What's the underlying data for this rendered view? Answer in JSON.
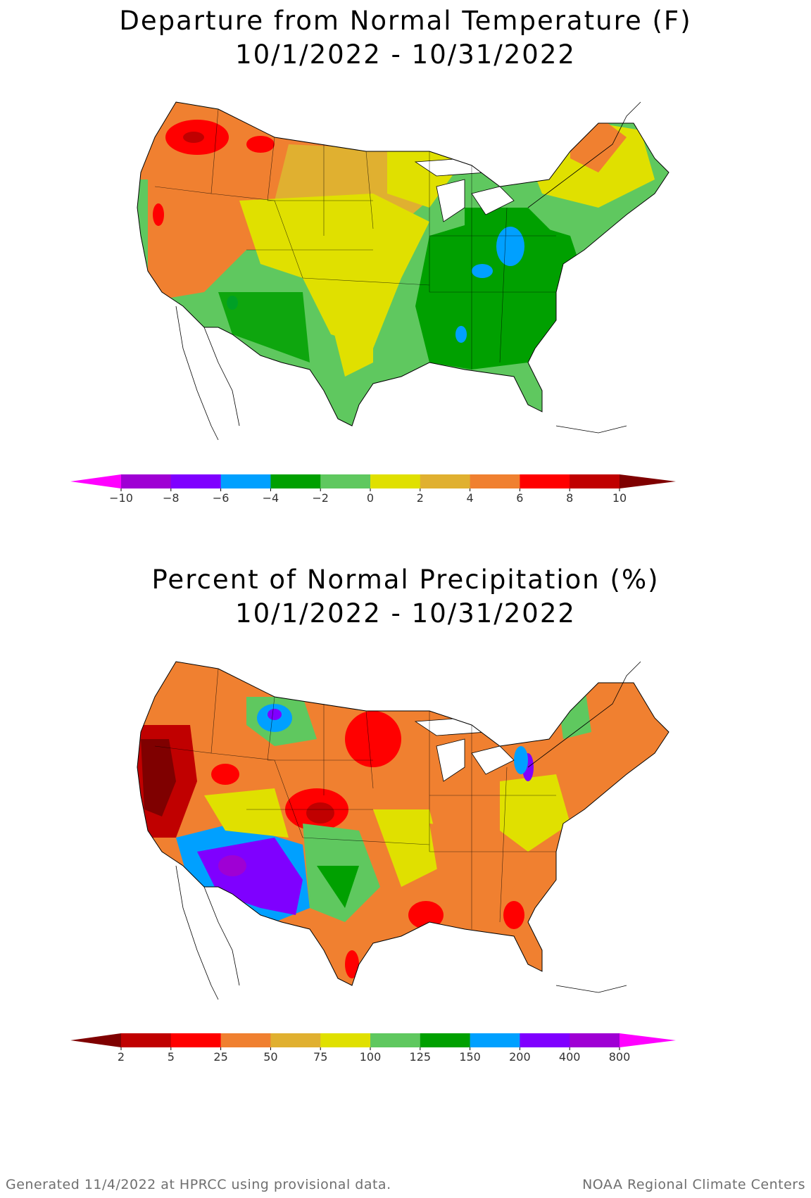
{
  "temperature": {
    "title_line1": "Departure from Normal Temperature (F)",
    "title_line2": "10/1/2022 - 10/31/2022",
    "scale_colors": [
      "#ff00ff",
      "#9f00d4",
      "#7f00ff",
      "#00a0ff",
      "#00a000",
      "#5fc85f",
      "#e0e000",
      "#e0b030",
      "#f08030",
      "#ff0000",
      "#c00000",
      "#7f0000"
    ],
    "scale_labels": [
      "−10",
      "−8",
      "−6",
      "−4",
      "−2",
      "0",
      "2",
      "4",
      "6",
      "8",
      "10"
    ]
  },
  "precipitation": {
    "title_line1": "Percent of Normal Precipitation (%)",
    "title_line2": "10/1/2022 - 10/31/2022",
    "scale_colors": [
      "#7f0000",
      "#c00000",
      "#ff0000",
      "#f08030",
      "#e0b030",
      "#e0e000",
      "#5fc85f",
      "#00a000",
      "#00a0ff",
      "#7f00ff",
      "#9f00d4",
      "#ff00ff"
    ],
    "scale_labels": [
      "2",
      "5",
      "25",
      "50",
      "75",
      "100",
      "125",
      "150",
      "200",
      "400",
      "800"
    ]
  },
  "footer": {
    "left": "Generated 11/4/2022 at HPRCC using provisional data.",
    "right": "NOAA Regional Climate Centers"
  }
}
